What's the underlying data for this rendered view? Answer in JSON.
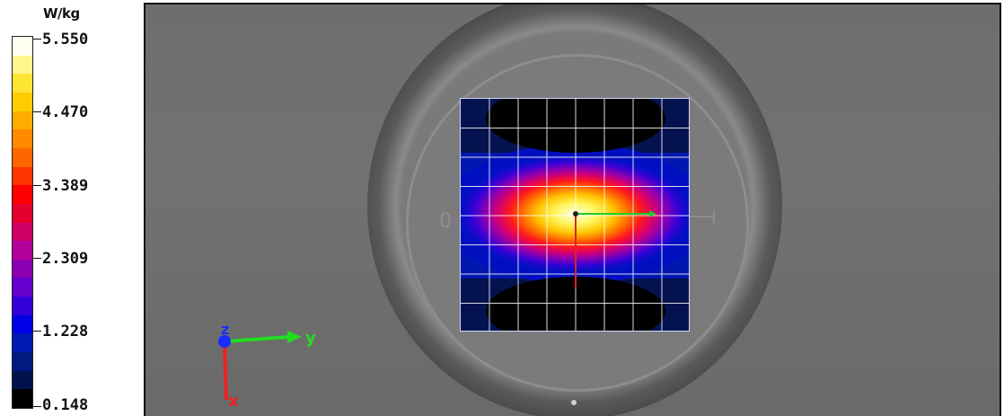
{
  "legend": {
    "unit": "W/kg",
    "ticks": [
      "5.550",
      "4.470",
      "3.389",
      "2.309",
      "1.228",
      "0.148"
    ],
    "colors": [
      "#fffff0",
      "#fff58c",
      "#ffe533",
      "#ffcc00",
      "#ffab00",
      "#ff8a00",
      "#ff6600",
      "#ff3300",
      "#ff0000",
      "#e6002e",
      "#cc0066",
      "#b30099",
      "#8c00b3",
      "#6600cc",
      "#3300d9",
      "#0000e6",
      "#0019b3",
      "#001a80",
      "#00134d",
      "#000000"
    ]
  },
  "viewport": {
    "phantom_label": "0"
  },
  "axes": {
    "z_label": "z",
    "y_label": "y",
    "x_label": "x",
    "colors": {
      "z": "#1a2bff",
      "y": "#22dd22",
      "x": "#ee2222"
    }
  },
  "probe": {
    "grid_cols": 8,
    "grid_rows": 8,
    "y_axis_color": "#22cc22",
    "x_axis_color": "#dd2222"
  }
}
